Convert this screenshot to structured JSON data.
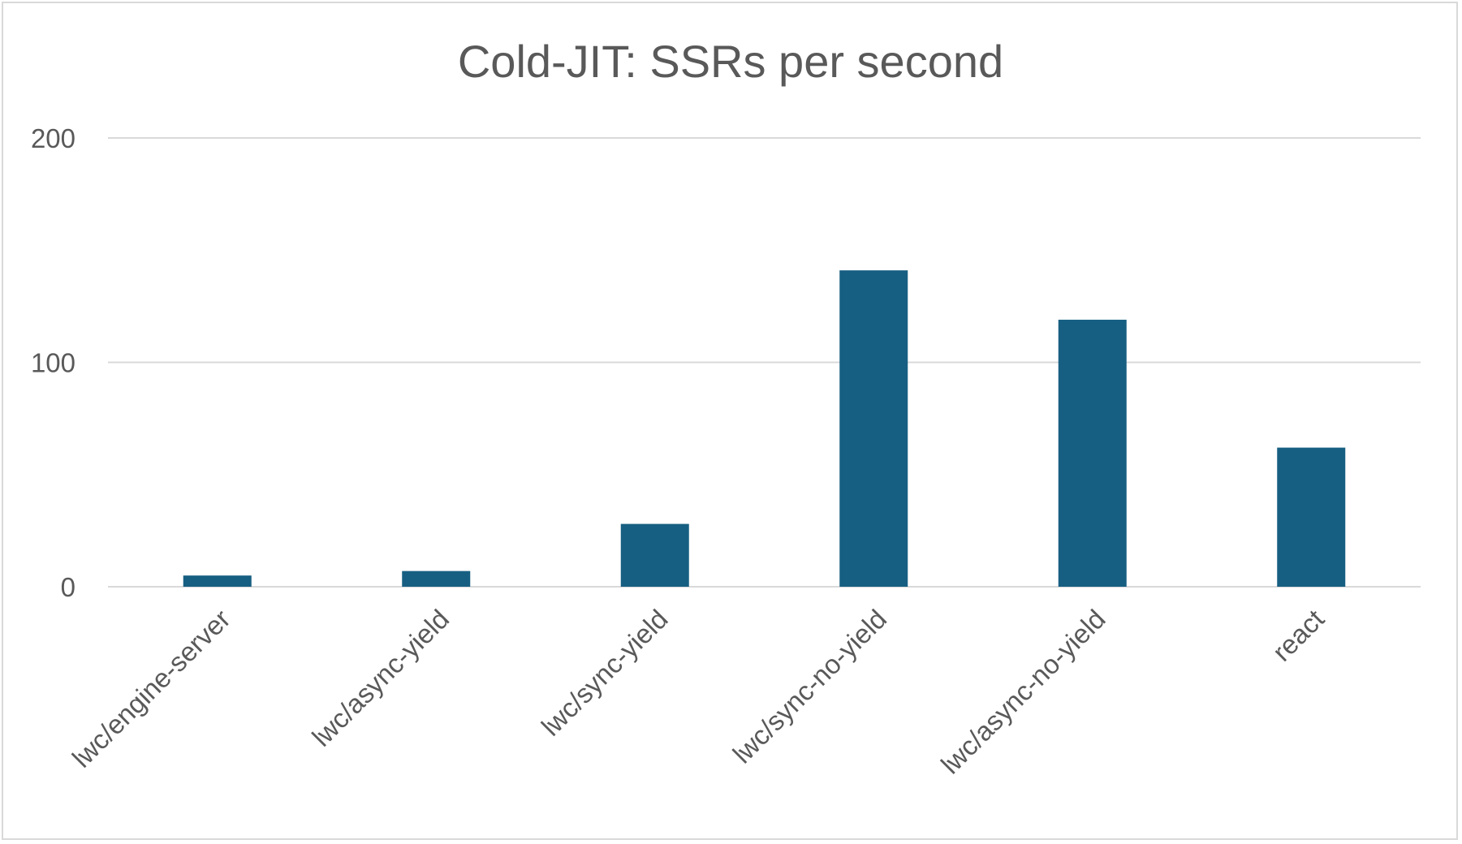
{
  "chart_data": {
    "type": "bar",
    "title": "Cold-JIT: SSRs per second",
    "categories": [
      "lwc/engine-server",
      "lwc/async-yield",
      "lwc/sync-yield",
      "lwc/sync-no-yield",
      "lwc/async-no-yield",
      "react"
    ],
    "values": [
      5,
      7,
      28,
      141,
      119,
      62
    ],
    "ylim": [
      0,
      200
    ],
    "yticks": [
      0,
      100,
      200
    ],
    "grid": true,
    "legend": "none",
    "colors": {
      "bar": "#175F82",
      "grid": "#D9D9D9",
      "text": "#595959"
    }
  }
}
